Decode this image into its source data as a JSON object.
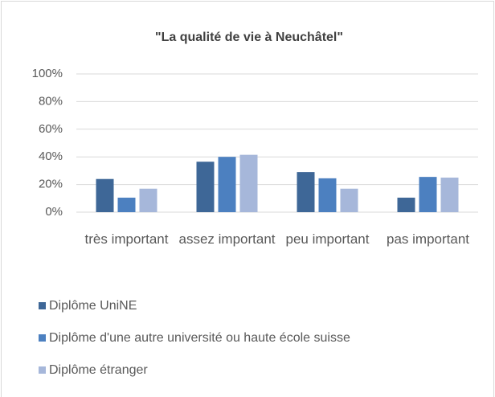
{
  "chart_data": {
    "type": "bar",
    "title": "\"La qualité de vie à Neuchâtel\"",
    "categories": [
      "très important",
      "assez important",
      "peu important",
      "pas important"
    ],
    "series": [
      {
        "name": "Diplôme UniNE",
        "color": "#3e6797",
        "values": [
          24,
          36.5,
          29,
          10.5
        ]
      },
      {
        "name": "Diplôme d'une autre université ou haute école suisse",
        "color": "#4c80c0",
        "values": [
          10.5,
          40,
          24.5,
          25.5
        ]
      },
      {
        "name": "Diplôme étranger",
        "color": "#a6b7da",
        "values": [
          17,
          41.5,
          17,
          25
        ]
      }
    ],
    "ylim": [
      0,
      100
    ],
    "yticks": [
      {
        "value": 0,
        "label": "0%"
      },
      {
        "value": 20,
        "label": "20%"
      },
      {
        "value": 40,
        "label": "40%"
      },
      {
        "value": 60,
        "label": "60%"
      },
      {
        "value": 80,
        "label": "80%"
      },
      {
        "value": 100,
        "label": "100%"
      }
    ],
    "grid": true,
    "legend": "bottom"
  }
}
